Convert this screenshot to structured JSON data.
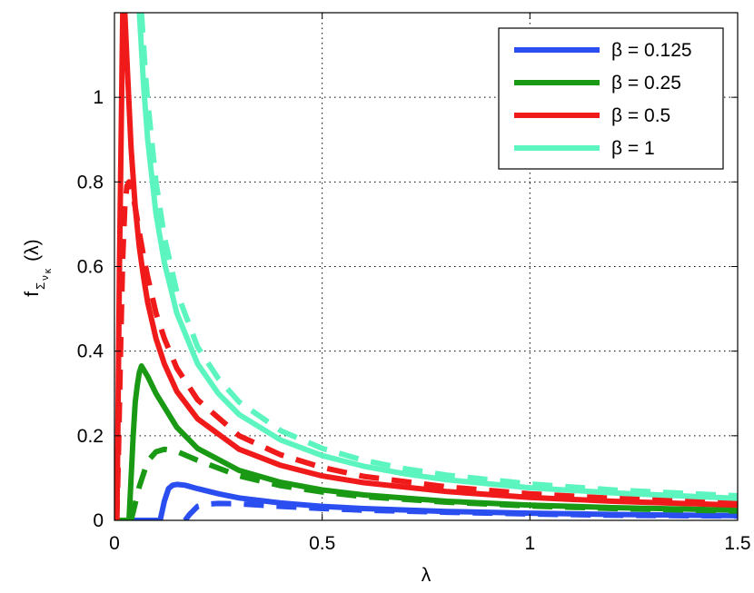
{
  "chart_data": {
    "type": "line",
    "xlabel": "λ",
    "ylabel": {
      "main": "f",
      "sub1": "Σ",
      "sub2": "ν",
      "sub3": "κ",
      "arg": "(λ)"
    },
    "xlim": [
      0,
      1.5
    ],
    "ylim": [
      0,
      1.2
    ],
    "x_ticks": [
      0,
      0.5,
      1,
      1.5
    ],
    "x_tick_labels": [
      "0",
      "0.5",
      "1",
      "1.5"
    ],
    "y_ticks": [
      0,
      0.2,
      0.4,
      0.6,
      0.8,
      1
    ],
    "y_tick_labels": [
      "0",
      "0.2",
      "0.4",
      "0.6",
      "0.8",
      "1"
    ],
    "grid": true,
    "legend_position": "top-right",
    "series": [
      {
        "name": "β = 0.125",
        "color": "#2b4ef0",
        "style": "solid",
        "x": [
          0,
          0.11,
          0.12,
          0.13,
          0.14,
          0.15,
          0.17,
          0.2,
          0.25,
          0.3,
          0.4,
          0.5,
          0.6,
          0.8,
          1.0,
          1.2,
          1.5
        ],
        "y": [
          0,
          0,
          0.045,
          0.075,
          0.083,
          0.085,
          0.083,
          0.075,
          0.063,
          0.053,
          0.041,
          0.033,
          0.028,
          0.021,
          0.017,
          0.014,
          0.011
        ]
      },
      {
        "name": "",
        "color": "#2b4ef0",
        "style": "dashed",
        "x": [
          0.17,
          0.18,
          0.2,
          0.22,
          0.25,
          0.3,
          0.4,
          0.5,
          0.6,
          0.8,
          1.0,
          1.2,
          1.5
        ],
        "y": [
          0,
          0.013,
          0.033,
          0.038,
          0.04,
          0.039,
          0.033,
          0.028,
          0.024,
          0.019,
          0.015,
          0.012,
          0.01
        ]
      },
      {
        "name": "β = 0.25",
        "color": "#1a9a14",
        "style": "solid",
        "x": [
          0,
          0.035,
          0.045,
          0.05,
          0.055,
          0.06,
          0.065,
          0.08,
          0.1,
          0.15,
          0.2,
          0.3,
          0.4,
          0.5,
          0.6,
          0.8,
          1.0,
          1.2,
          1.5
        ],
        "y": [
          0,
          0,
          0.2,
          0.28,
          0.32,
          0.35,
          0.365,
          0.34,
          0.3,
          0.22,
          0.17,
          0.118,
          0.09,
          0.072,
          0.06,
          0.045,
          0.036,
          0.03,
          0.024
        ]
      },
      {
        "name": "",
        "color": "#1a9a14",
        "style": "dashed",
        "x": [
          0.04,
          0.06,
          0.08,
          0.1,
          0.12,
          0.15,
          0.2,
          0.3,
          0.4,
          0.5,
          0.6,
          0.8,
          1.0,
          1.2,
          1.5
        ],
        "y": [
          0,
          0.08,
          0.14,
          0.162,
          0.168,
          0.163,
          0.142,
          0.105,
          0.082,
          0.067,
          0.056,
          0.043,
          0.034,
          0.028,
          0.022
        ]
      },
      {
        "name": "β = 0.5",
        "color": "#f01a1a",
        "style": "solid",
        "x": [
          0,
          0.006,
          0.008,
          0.012,
          0.02,
          0.025,
          0.03,
          0.04,
          0.05,
          0.06,
          0.07,
          0.08,
          0.1,
          0.12,
          0.15,
          0.2,
          0.3,
          0.4,
          0.5,
          0.6,
          0.8,
          1.0,
          1.2,
          1.5
        ],
        "y": [
          0,
          0,
          0.2,
          0.6,
          1.2,
          1.2,
          1.09,
          0.88,
          0.74,
          0.645,
          0.575,
          0.515,
          0.43,
          0.37,
          0.305,
          0.24,
          0.168,
          0.13,
          0.105,
          0.089,
          0.068,
          0.054,
          0.045,
          0.036
        ]
      },
      {
        "name": "",
        "color": "#f01a1a",
        "style": "dashed",
        "x": [
          0.005,
          0.007,
          0.01,
          0.015,
          0.02,
          0.025,
          0.03,
          0.035,
          0.04,
          0.05,
          0.06,
          0.07,
          0.08,
          0.1,
          0.12,
          0.15,
          0.2,
          0.3,
          0.4,
          0.5,
          0.6,
          0.8,
          1.0,
          1.2,
          1.5
        ],
        "y": [
          0,
          0.05,
          0.18,
          0.42,
          0.62,
          0.74,
          0.79,
          0.8,
          0.79,
          0.74,
          0.68,
          0.625,
          0.575,
          0.49,
          0.43,
          0.36,
          0.285,
          0.2,
          0.155,
          0.125,
          0.104,
          0.079,
          0.063,
          0.052,
          0.042
        ]
      },
      {
        "name": "β = 1",
        "color": "#5cf5bf",
        "style": "solid",
        "x": [
          0.06,
          0.07,
          0.08,
          0.1,
          0.12,
          0.15,
          0.2,
          0.25,
          0.3,
          0.4,
          0.5,
          0.6,
          0.7,
          0.8,
          1.0,
          1.2,
          1.5
        ],
        "y": [
          1.2,
          1.03,
          0.9,
          0.725,
          0.61,
          0.49,
          0.37,
          0.3,
          0.25,
          0.19,
          0.153,
          0.128,
          0.11,
          0.096,
          0.077,
          0.065,
          0.052
        ]
      },
      {
        "name": "",
        "color": "#5cf5bf",
        "style": "dashed",
        "x": [
          0.065,
          0.075,
          0.08,
          0.1,
          0.12,
          0.15,
          0.2,
          0.25,
          0.3,
          0.4,
          0.5,
          0.6,
          0.7,
          0.8,
          1.0,
          1.2,
          1.5
        ],
        "y": [
          1.2,
          1.05,
          0.99,
          0.8,
          0.67,
          0.54,
          0.41,
          0.335,
          0.28,
          0.212,
          0.17,
          0.142,
          0.122,
          0.107,
          0.086,
          0.072,
          0.058
        ]
      }
    ]
  }
}
